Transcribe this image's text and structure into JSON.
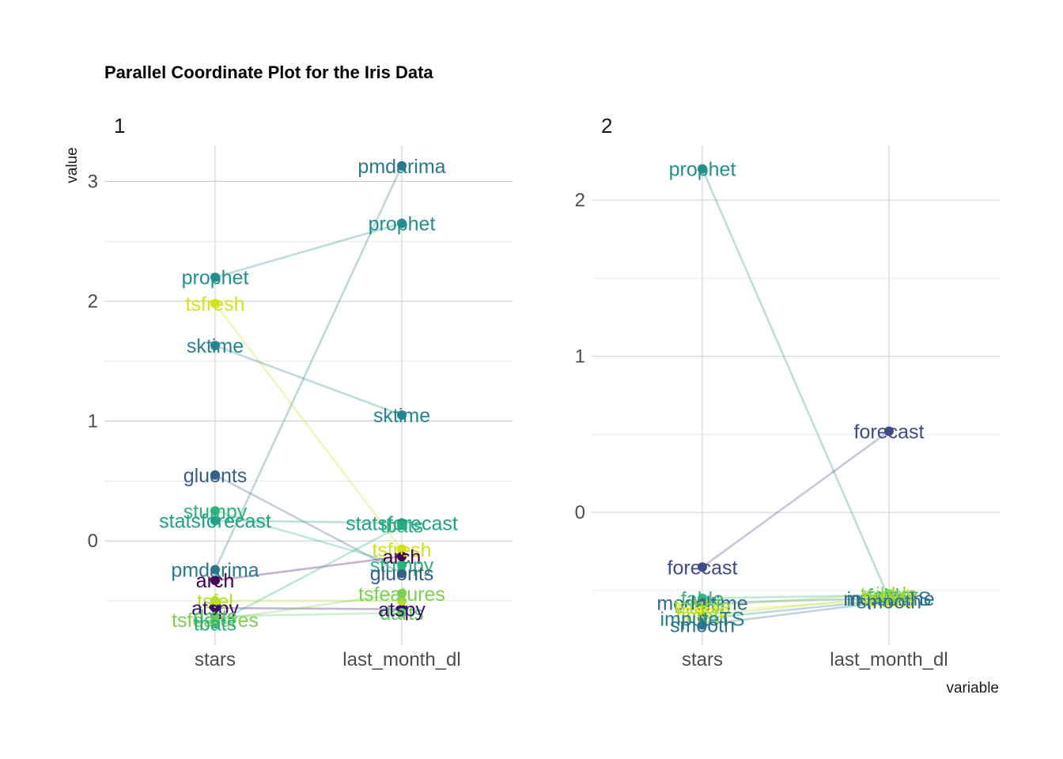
{
  "chart_data": {
    "type": "line",
    "title": "Parallel Coordinate Plot for the Iris Data",
    "xlabel": "variable",
    "ylabel": "value",
    "grid": true,
    "legend": "none",
    "variables": [
      "stars",
      "last_month_dl"
    ],
    "panels": [
      {
        "strip_label": "1",
        "ylim": [
          -0.87,
          3.3
        ],
        "yticks": [
          0,
          1,
          2,
          3
        ],
        "series": [
          {
            "name": "prophet",
            "values": [
              2.2,
              2.65
            ],
            "color": "#21908c"
          },
          {
            "name": "tsfresh",
            "values": [
              1.98,
              -0.07
            ],
            "color": "#d2e21b"
          },
          {
            "name": "sktime",
            "values": [
              1.63,
              1.05
            ],
            "color": "#24858e"
          },
          {
            "name": "gluonts",
            "values": [
              0.55,
              -0.27
            ],
            "color": "#35608d"
          },
          {
            "name": "stumpy",
            "values": [
              0.25,
              -0.2
            ],
            "color": "#2db27d"
          },
          {
            "name": "statsforecast",
            "values": [
              0.17,
              0.15
            ],
            "color": "#1fa187"
          },
          {
            "name": "pmdarima",
            "values": [
              -0.24,
              3.13
            ],
            "color": "#2a778e"
          },
          {
            "name": "arch",
            "values": [
              -0.33,
              -0.13
            ],
            "color": "#440154"
          },
          {
            "name": "tbats",
            "values": [
              -0.69,
              0.13
            ],
            "color": "#28ae80"
          },
          {
            "name": "atspy",
            "values": [
              -0.56,
              -0.57
            ],
            "color": "#3b0f70"
          },
          {
            "name": "tsfel",
            "values": [
              -0.5,
              -0.5
            ],
            "color": "#b8de29"
          },
          {
            "name": "tsfeatures",
            "values": [
              -0.66,
              -0.44
            ],
            "color": "#7ad151"
          },
          {
            "name": "darts",
            "values": [
              -0.63,
              -0.6
            ],
            "color": "#5ec962"
          }
        ],
        "labels": [
          {
            "text": "prophet",
            "var": 0,
            "y": 2.2,
            "color": "#21908c"
          },
          {
            "text": "tsfresh",
            "var": 0,
            "y": 1.98,
            "color": "#d2e21b"
          },
          {
            "text": "sktime",
            "var": 0,
            "y": 1.63,
            "color": "#24858e"
          },
          {
            "text": "gluonts",
            "var": 0,
            "y": 0.55,
            "color": "#35608d"
          },
          {
            "text": "stumpy",
            "var": 0,
            "y": 0.25,
            "color": "#2db27d"
          },
          {
            "text": "statsforecast",
            "var": 0,
            "y": 0.17,
            "color": "#1fa187"
          },
          {
            "text": "pmdarima",
            "var": 0,
            "y": -0.24,
            "color": "#2a778e"
          },
          {
            "text": "arch",
            "var": 0,
            "y": -0.33,
            "color": "#440154"
          },
          {
            "text": "tsfel",
            "var": 0,
            "y": -0.5,
            "color": "#b8de29"
          },
          {
            "text": "atspy",
            "var": 0,
            "y": -0.56,
            "color": "#3b0f70"
          },
          {
            "text": "tsfeatures",
            "var": 0,
            "y": -0.66,
            "color": "#7ad151"
          },
          {
            "text": "darts",
            "var": 0,
            "y": -0.63,
            "color": "#5ec962"
          },
          {
            "text": "tbats",
            "var": 0,
            "y": -0.69,
            "color": "#28ae80"
          },
          {
            "text": "pmdarima",
            "var": 1,
            "y": 3.13,
            "color": "#2a778e"
          },
          {
            "text": "prophet",
            "var": 1,
            "y": 2.65,
            "color": "#21908c"
          },
          {
            "text": "sktime",
            "var": 1,
            "y": 1.05,
            "color": "#24858e"
          },
          {
            "text": "statsforecast",
            "var": 1,
            "y": 0.15,
            "color": "#1fa187"
          },
          {
            "text": "tbats",
            "var": 1,
            "y": 0.13,
            "color": "#28ae80"
          },
          {
            "text": "tsfresh",
            "var": 1,
            "y": -0.07,
            "color": "#d2e21b"
          },
          {
            "text": "arch",
            "var": 1,
            "y": -0.13,
            "color": "#440154"
          },
          {
            "text": "stumpy",
            "var": 1,
            "y": -0.2,
            "color": "#2db27d"
          },
          {
            "text": "gluonts",
            "var": 1,
            "y": -0.27,
            "color": "#35608d"
          },
          {
            "text": "tsfeatures",
            "var": 1,
            "y": -0.44,
            "color": "#7ad151"
          },
          {
            "text": "darts",
            "var": 1,
            "y": -0.6,
            "color": "#5ec962"
          },
          {
            "text": "atspy",
            "var": 1,
            "y": -0.57,
            "color": "#3b0f70"
          }
        ]
      },
      {
        "strip_label": "2",
        "ylim": [
          -0.85,
          2.35
        ],
        "yticks": [
          0,
          1,
          2
        ],
        "series": [
          {
            "name": "prophet",
            "values": [
              2.2,
              -0.55
            ],
            "color": "#21908c"
          },
          {
            "name": "forecast",
            "values": [
              -0.35,
              0.52
            ],
            "color": "#3e4a89"
          },
          {
            "name": "fable",
            "values": [
              -0.55,
              -0.53
            ],
            "color": "#35b779"
          },
          {
            "name": "modeltime",
            "values": [
              -0.58,
              -0.55
            ],
            "color": "#31688e"
          },
          {
            "name": "tsibble",
            "values": [
              -0.6,
              -0.52
            ],
            "color": "#8fd744"
          },
          {
            "name": "feasts",
            "values": [
              -0.63,
              -0.56
            ],
            "color": "#fde725"
          },
          {
            "name": "timetk",
            "values": [
              -0.66,
              -0.54
            ],
            "color": "#a0da39"
          },
          {
            "name": "imputeTS",
            "values": [
              -0.68,
              -0.56
            ],
            "color": "#26828e"
          },
          {
            "name": "smooth",
            "values": [
              -0.72,
              -0.57
            ],
            "color": "#2c728e"
          }
        ],
        "labels": [
          {
            "text": "prophet",
            "var": 0,
            "y": 2.2,
            "color": "#21908c"
          },
          {
            "text": "forecast",
            "var": 0,
            "y": -0.35,
            "color": "#3e4a89"
          },
          {
            "text": "forecast",
            "var": 1,
            "y": 0.52,
            "color": "#3e4a89"
          },
          {
            "text": "fable",
            "var": 0,
            "y": -0.55,
            "color": "#35b779"
          },
          {
            "text": "modeltime",
            "var": 0,
            "y": -0.58,
            "color": "#31688e"
          },
          {
            "text": "tsibble",
            "var": 0,
            "y": -0.6,
            "color": "#8fd744"
          },
          {
            "text": "feasts",
            "var": 0,
            "y": -0.63,
            "color": "#fde725"
          },
          {
            "text": "timetk",
            "var": 0,
            "y": -0.66,
            "color": "#a0da39"
          },
          {
            "text": "imputeTS",
            "var": 0,
            "y": -0.68,
            "color": "#26828e"
          },
          {
            "text": "smooth",
            "var": 0,
            "y": -0.72,
            "color": "#2c728e"
          },
          {
            "text": "imputeTS",
            "var": 1,
            "y": -0.55,
            "color": "#26828e"
          },
          {
            "text": "modeltime",
            "var": 1,
            "y": -0.55,
            "color": "#31688e"
          },
          {
            "text": "feasts",
            "var": 1,
            "y": -0.56,
            "color": "#fde725"
          },
          {
            "text": "fable",
            "var": 1,
            "y": -0.53,
            "color": "#35b779"
          },
          {
            "text": "tsibble",
            "var": 1,
            "y": -0.52,
            "color": "#8fd744"
          },
          {
            "text": "timetk",
            "var": 1,
            "y": -0.54,
            "color": "#a0da39"
          },
          {
            "text": "smooth",
            "var": 1,
            "y": -0.57,
            "color": "#2c728e"
          }
        ]
      }
    ]
  }
}
